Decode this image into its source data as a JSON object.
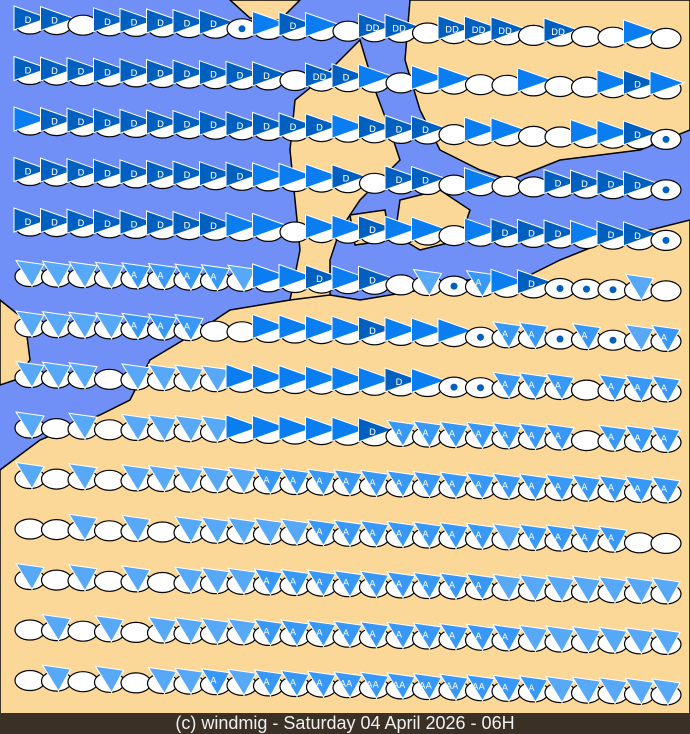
{
  "caption": "(c) windmig - Saturday 04 April 2026 - 06H",
  "colors": {
    "sea": "#7090f8",
    "land": "#fcd898",
    "dark": "#0060c0",
    "medium": "#0a7ef0",
    "light": "#3898f8",
    "pale": "#58a8f8",
    "ellipse": "#ffffff",
    "border": "#000000"
  },
  "legend_codes": {
    "D": "D",
    "A": "A",
    "X": "DD",
    "Y": "AA",
    "o": "",
    "w": "drop-icon"
  },
  "symbol_rows": [
    "D D o D D D D D w d D d o X X o X X X o X o o d o",
    "D D D D D D D D D D o X D d o d d o o d o o d D d",
    "d D D D D D D D D D D D d D D D o d d o o d d D w",
    "D D D D D D D D D d d d D o D D o d o o D D D D w",
    "D D D D D D D D d d o d d D d d o d D D D d D D w",
    "a a a a A A A A a d d D d D o a w A d D w w w a o",
    "a a a a A A A o o d d d d D d d d w A A w A w a A",
    "a a a o a a a a d d d d d d D d w w A A A o A A A",
    "a o a o a a a a d d d d d D A A A A A A A o A A A",
    "a o a o a a a a a A A A A A A A A A A A A A A A A",
    "o o a o a o a a a a a A A A A A A A a A A A A o o",
    "a o a o a o a a a A A A A A A A A A a a a a a a a",
    "o a o a o a a a a A A A A A A A A A A a a a a a a",
    "o a o a o a a A a A A A Y Y Y Y Y Y A A a a a a a"
  ]
}
